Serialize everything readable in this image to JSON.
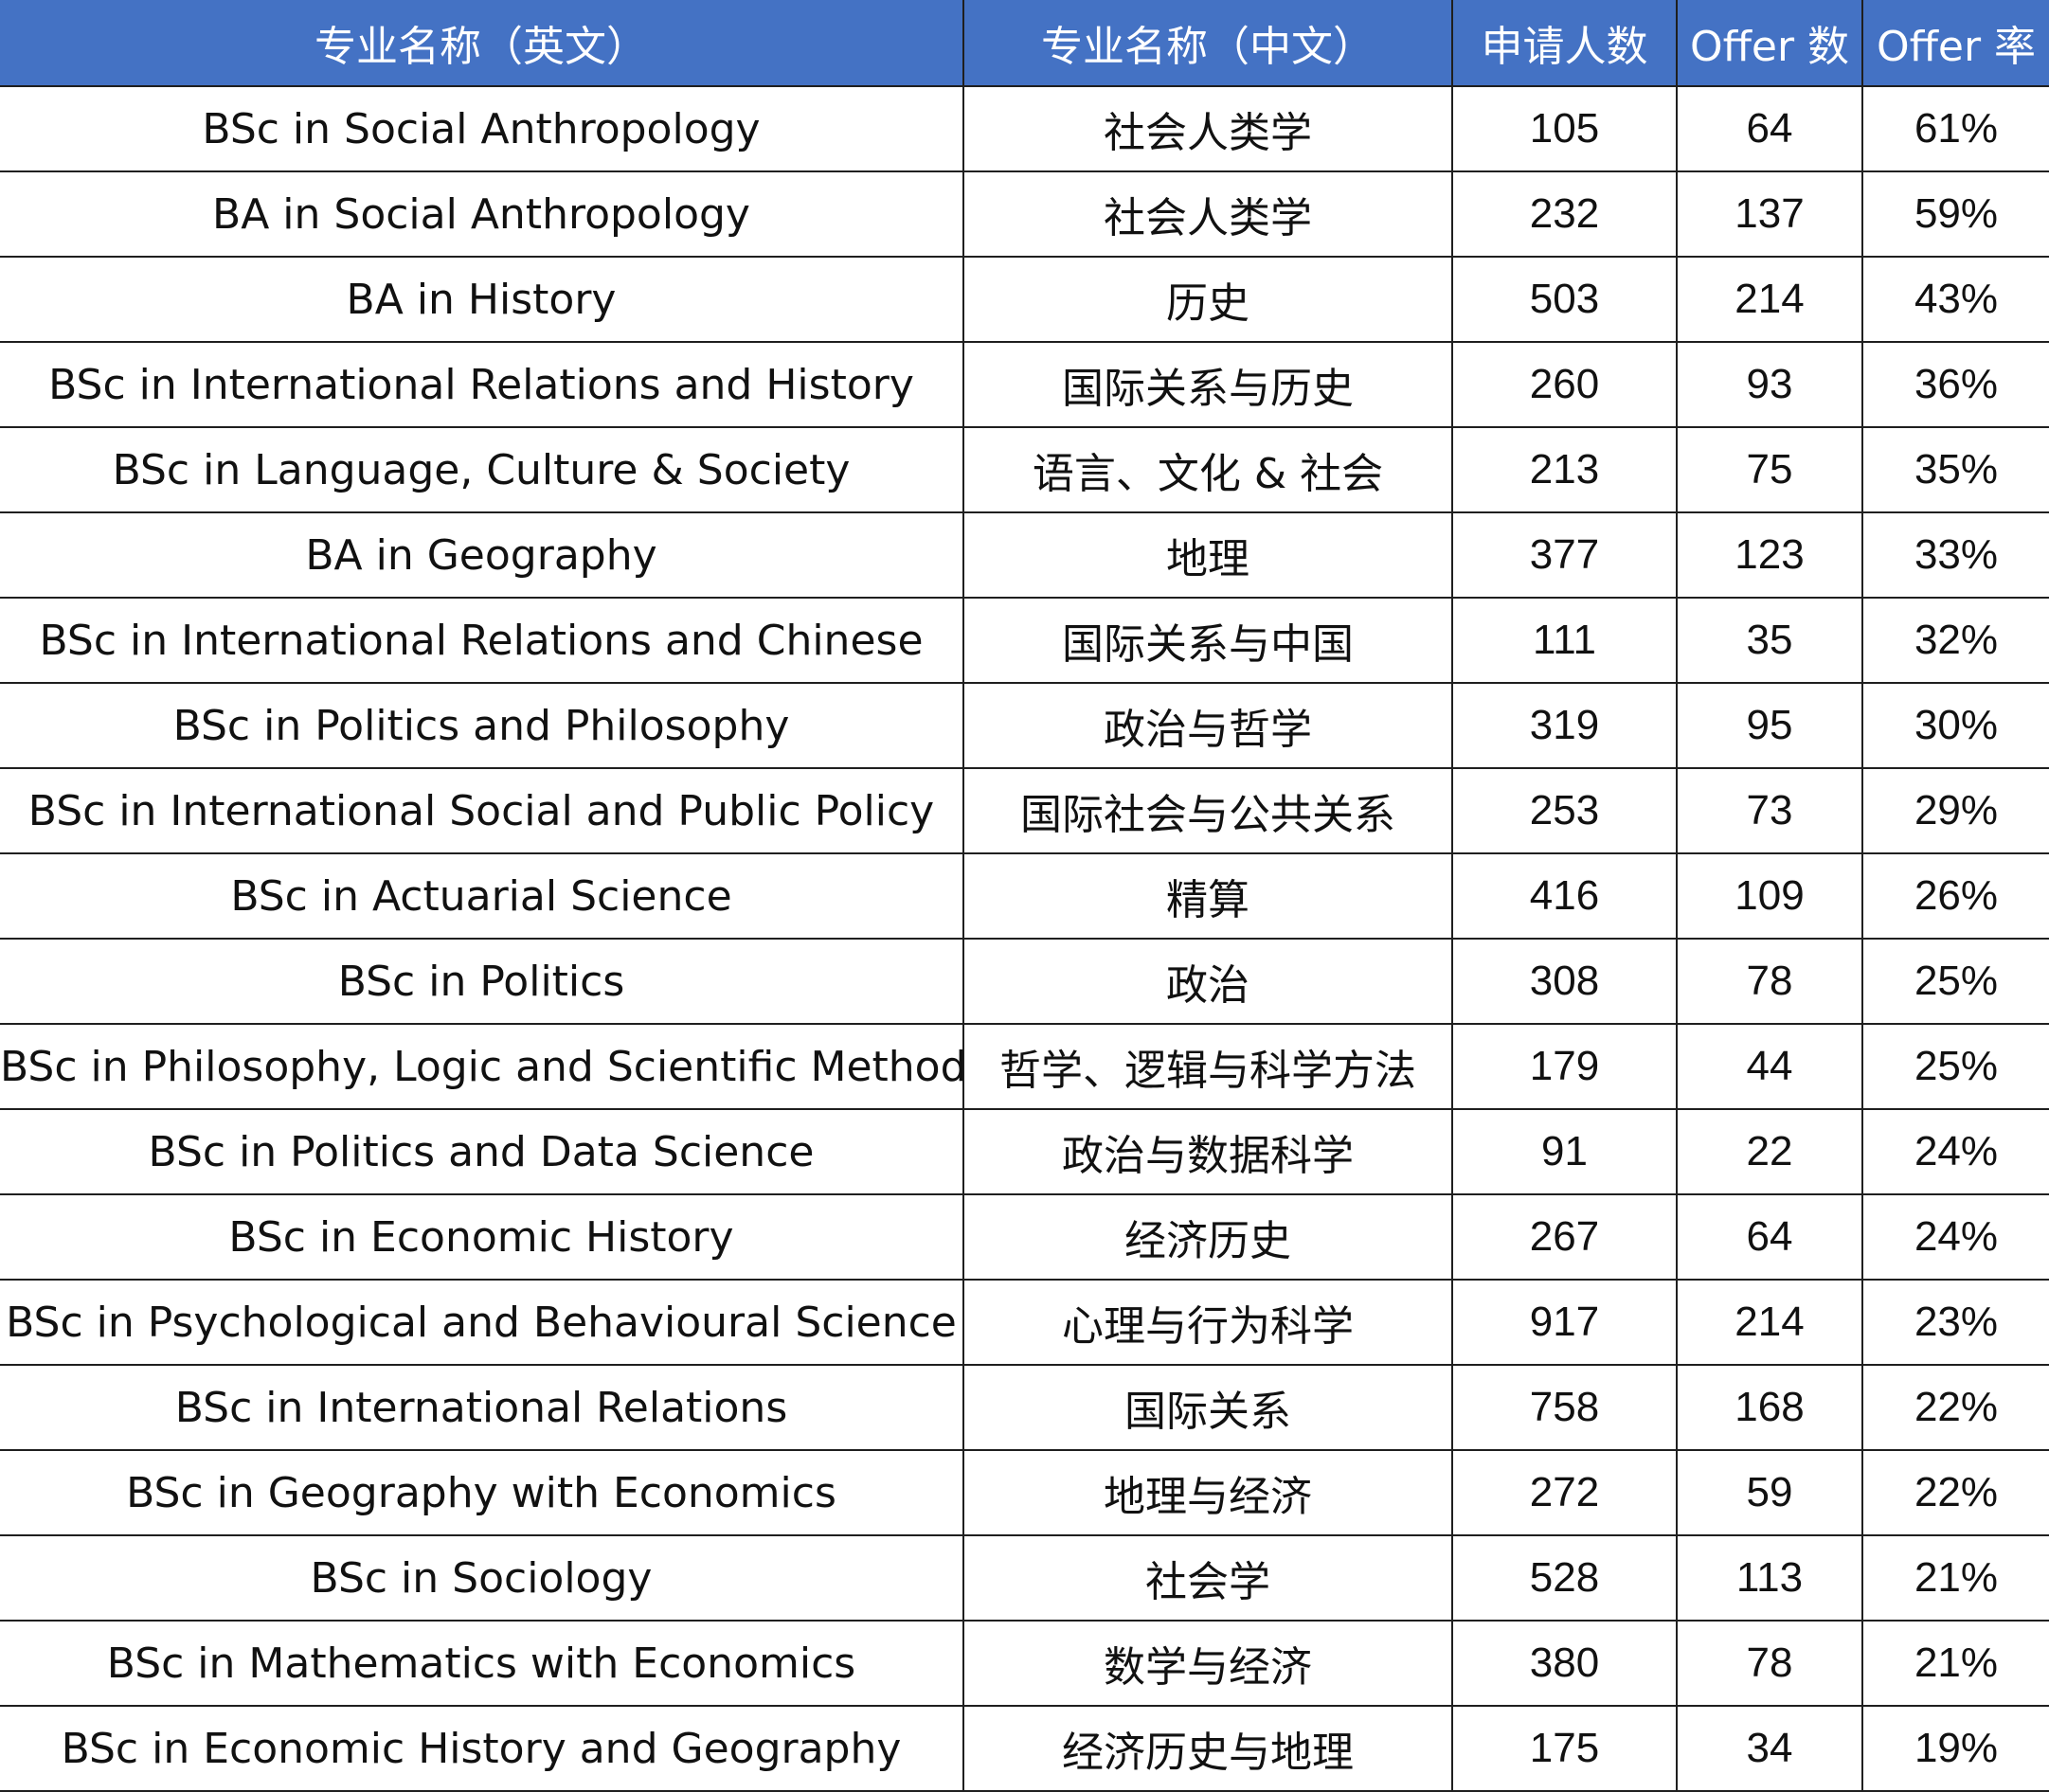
{
  "table": {
    "header_color": "#4472C4",
    "columns": [
      "专业名称（英文）",
      "专业名称（中文）",
      "申请人数",
      "Offer 数",
      "Offer 率"
    ],
    "rows": [
      [
        "BSc in Social Anthropology",
        "社会人类学",
        "105",
        "64",
        "61%"
      ],
      [
        "BA in Social Anthropology",
        "社会人类学",
        "232",
        "137",
        "59%"
      ],
      [
        "BA in History",
        "历史",
        "503",
        "214",
        "43%"
      ],
      [
        "BSc in International Relations and History",
        "国际关系与历史",
        "260",
        "93",
        "36%"
      ],
      [
        "BSc in Language, Culture & Society",
        "语言、文化 & 社会",
        "213",
        "75",
        "35%"
      ],
      [
        "BA in Geography",
        "地理",
        "377",
        "123",
        "33%"
      ],
      [
        "BSc in International Relations and Chinese",
        "国际关系与中国",
        "111",
        "35",
        "32%"
      ],
      [
        "BSc in Politics and Philosophy",
        "政治与哲学",
        "319",
        "95",
        "30%"
      ],
      [
        "BSc in International Social and Public Policy",
        "国际社会与公共关系",
        "253",
        "73",
        "29%"
      ],
      [
        "BSc in Actuarial Science",
        "精算",
        "416",
        "109",
        "26%"
      ],
      [
        "BSc in Politics",
        "政治",
        "308",
        "78",
        "25%"
      ],
      [
        "BSc in Philosophy, Logic and Scientific Method",
        "哲学、逻辑与科学方法",
        "179",
        "44",
        "25%"
      ],
      [
        "BSc in Politics and Data Science",
        "政治与数据科学",
        "91",
        "22",
        "24%"
      ],
      [
        "BSc in Economic History",
        "经济历史",
        "267",
        "64",
        "24%"
      ],
      [
        "BSc in Psychological and Behavioural Science",
        "心理与行为科学",
        "917",
        "214",
        "23%"
      ],
      [
        "BSc in International Relations",
        "国际关系",
        "758",
        "168",
        "22%"
      ],
      [
        "BSc in Geography with Economics",
        "地理与经济",
        "272",
        "59",
        "22%"
      ],
      [
        "BSc in Sociology",
        "社会学",
        "528",
        "113",
        "21%"
      ],
      [
        "BSc in Mathematics with Economics",
        "数学与经济",
        "380",
        "78",
        "21%"
      ],
      [
        "BSc in Economic History and Geography",
        "经济历史与地理",
        "175",
        "34",
        "19%"
      ]
    ]
  }
}
